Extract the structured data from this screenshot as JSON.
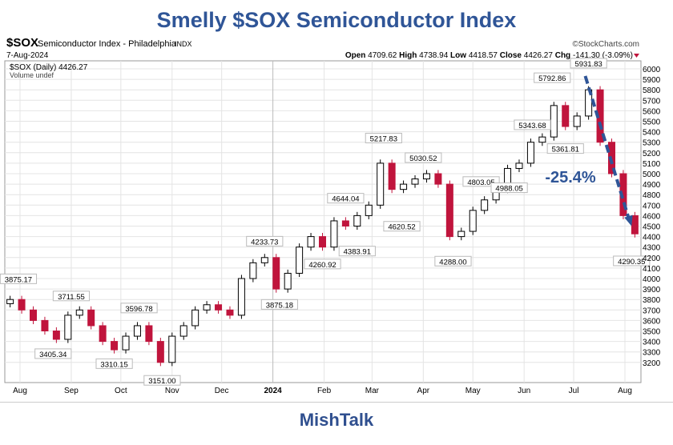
{
  "title": "Smelly $SOX Semiconductor Index",
  "footer": "MishTalk",
  "header": {
    "symbol": "$SOX",
    "name": "Semiconductor Index - Philadelphia",
    "exchange": "INDX",
    "credit": "©StockCharts.com",
    "date": "7-Aug-2024",
    "open_label": "Open",
    "open": "4709.62",
    "high_label": "High",
    "high": "4738.94",
    "low_label": "Low",
    "low": "4418.57",
    "close_label": "Close",
    "close": "4426.27",
    "chg_label": "Chg",
    "chg": "-141.30 (-3.09%)",
    "legend_price": "$SOX (Daily) 4426.27",
    "legend_volume": "Volume undef"
  },
  "colors": {
    "up": "#000000",
    "down": "#c0143c",
    "arrow": "#2f5597",
    "title": "#2f5597"
  },
  "chart_data": {
    "type": "candlestick",
    "title": "Smelly $SOX Semiconductor Index",
    "ylim": [
      3150,
      6050
    ],
    "yticks": [
      3200,
      3300,
      3400,
      3500,
      3600,
      3700,
      3800,
      3900,
      4000,
      4100,
      4200,
      4300,
      4400,
      4500,
      4600,
      4700,
      4800,
      4900,
      5000,
      5100,
      5200,
      5300,
      5400,
      5500,
      5600,
      5700,
      5800,
      5900,
      6000
    ],
    "xticks": [
      {
        "label": "Aug",
        "date": "2023-08-01"
      },
      {
        "label": "Sep",
        "date": "2023-09-01"
      },
      {
        "label": "Oct",
        "date": "2023-10-01"
      },
      {
        "label": "Nov",
        "date": "2023-11-01"
      },
      {
        "label": "Dec",
        "date": "2023-12-01"
      },
      {
        "label": "2024",
        "date": "2024-01-01",
        "bold": true
      },
      {
        "label": "Feb",
        "date": "2024-02-01"
      },
      {
        "label": "Mar",
        "date": "2024-03-01"
      },
      {
        "label": "Apr",
        "date": "2024-04-01"
      },
      {
        "label": "May",
        "date": "2024-05-01"
      },
      {
        "label": "Jun",
        "date": "2024-06-01"
      },
      {
        "label": "Jul",
        "date": "2024-07-01"
      },
      {
        "label": "Aug",
        "date": "2024-08-01"
      }
    ],
    "grid": true,
    "weekly_close_approx": {
      "start": "2023-07-24",
      "values": [
        3800,
        3700,
        3600,
        3500,
        3420,
        3650,
        3700,
        3550,
        3400,
        3320,
        3450,
        3550,
        3400,
        3200,
        3450,
        3550,
        3700,
        3750,
        3700,
        3650,
        4000,
        4150,
        4200,
        3900,
        4050,
        4300,
        4400,
        4300,
        4550,
        4500,
        4600,
        4700,
        5100,
        4850,
        4900,
        4950,
        5000,
        4900,
        4400,
        4450,
        4650,
        4750,
        4850,
        5050,
        5100,
        5300,
        5350,
        5650,
        5450,
        5550,
        5800,
        5300,
        5000,
        4600,
        4426
      ]
    },
    "annotations": [
      {
        "text": "3875.17",
        "date": "2023-07-31",
        "value": 3875.17,
        "pos": "above"
      },
      {
        "text": "3405.34",
        "date": "2023-08-21",
        "value": 3405.34,
        "pos": "below"
      },
      {
        "text": "3711.55",
        "date": "2023-09-01",
        "value": 3711.55,
        "pos": "above"
      },
      {
        "text": "3310.15",
        "date": "2023-09-27",
        "value": 3310.15,
        "pos": "below"
      },
      {
        "text": "3596.78",
        "date": "2023-10-12",
        "value": 3596.78,
        "pos": "above"
      },
      {
        "text": "3151.00",
        "date": "2023-10-26",
        "value": 3151.0,
        "pos": "below"
      },
      {
        "text": "4233.73",
        "date": "2023-12-27",
        "value": 4233.73,
        "pos": "above"
      },
      {
        "text": "3875.18",
        "date": "2024-01-05",
        "value": 3875.18,
        "pos": "below"
      },
      {
        "text": "4260.92",
        "date": "2024-01-31",
        "value": 4260.92,
        "pos": "below"
      },
      {
        "text": "4644.04",
        "date": "2024-02-14",
        "value": 4644.04,
        "pos": "above"
      },
      {
        "text": "4383.91",
        "date": "2024-02-21",
        "value": 4383.91,
        "pos": "below"
      },
      {
        "text": "5217.83",
        "date": "2024-03-08",
        "value": 5217.83,
        "pos": "above"
      },
      {
        "text": "4620.52",
        "date": "2024-03-19",
        "value": 4620.52,
        "pos": "below"
      },
      {
        "text": "5030.52",
        "date": "2024-04-01",
        "value": 5030.52,
        "pos": "above"
      },
      {
        "text": "4288.00",
        "date": "2024-04-19",
        "value": 4288.0,
        "pos": "below"
      },
      {
        "text": "4803.05",
        "date": "2024-05-06",
        "value": 4803.05,
        "pos": "above"
      },
      {
        "text": "4988.05",
        "date": "2024-05-23",
        "value": 4988.05,
        "pos": "below"
      },
      {
        "text": "5343.68",
        "date": "2024-06-06",
        "value": 5343.68,
        "pos": "above"
      },
      {
        "text": "5792.86",
        "date": "2024-06-18",
        "value": 5792.86,
        "pos": "above"
      },
      {
        "text": "5361.81",
        "date": "2024-06-26",
        "value": 5361.81,
        "pos": "below"
      },
      {
        "text": "5931.83",
        "date": "2024-07-10",
        "value": 5931.83,
        "pos": "above"
      },
      {
        "text": "4290.35",
        "date": "2024-08-05",
        "value": 4290.35,
        "pos": "below"
      }
    ],
    "trend_arrow": {
      "from": {
        "date": "2024-07-08",
        "value": 5931.83
      },
      "to": {
        "date": "2024-08-05",
        "value": 4500
      }
    },
    "trend_label": "-25.4%"
  }
}
